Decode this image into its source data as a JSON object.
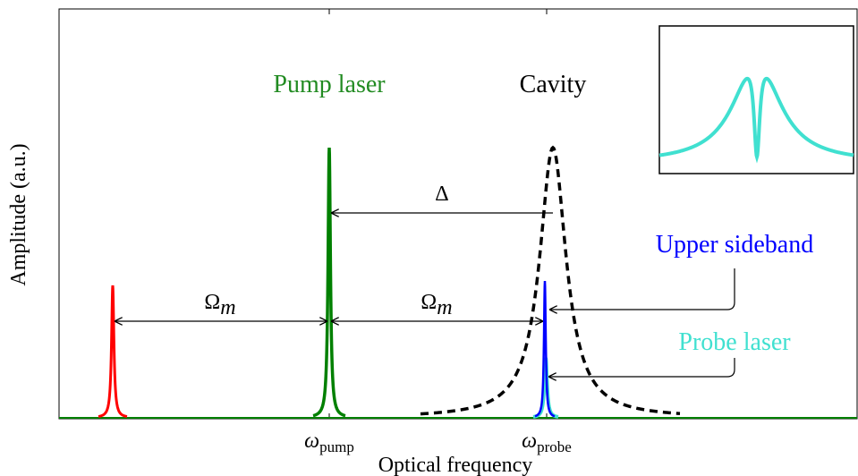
{
  "axes": {
    "ylabel": "Amplitude (a.u.)",
    "xlabel": "Optical frequency",
    "xticks": [
      {
        "symbol": "ω",
        "sub": "pump"
      },
      {
        "symbol": "ω",
        "sub": "probe"
      }
    ]
  },
  "labels": {
    "pump_laser": "Pump laser",
    "cavity": "Cavity",
    "upper_sideband": "Upper sideband",
    "probe_laser": "Probe laser",
    "delta": "Δ",
    "omega_m_left": {
      "symbol": "Ω",
      "sub": "m"
    },
    "omega_m_right": {
      "symbol": "Ω",
      "sub": "m"
    }
  },
  "colors": {
    "lower_sideband": "#ff0000",
    "pump": "#008000",
    "upper_sideband": "#0000ff",
    "probe": "#40e0d0",
    "cavity": "#000000",
    "text_pump": "#228b22",
    "text_upper": "#0000ff",
    "text_probe": "#40e0d0"
  },
  "icons": {
    "arrowhead": "arrowhead-icon"
  }
}
